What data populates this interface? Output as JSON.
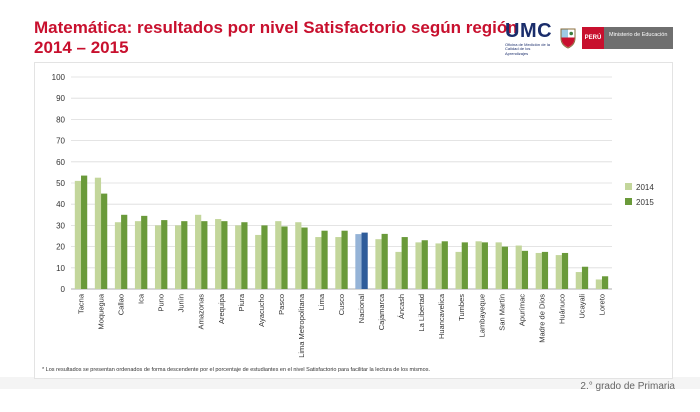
{
  "header": {
    "title_line1": "Matemática: resultados por nivel Satisfactorio según región",
    "title_line2": "2014 – 2015",
    "umc_logo_text": "UMC",
    "umc_logo_subtitle": "Oficina de Medición de la Calidad de los Aprendizajes",
    "peru_label": "PERÚ",
    "ministry_label": "Ministerio de Educación"
  },
  "footnote": "* Los resultados se presentan ordenados de forma descendente por el porcentaje de estudiantes en el nivel Satisfactorio para facilitar la lectura de los mismos.",
  "grade_label": "2.° grado de Primaria",
  "colors": {
    "series_2014": "#c3d69b",
    "series_2015": "#6a9a3a",
    "nacional_2014": "#95b3d7",
    "nacional_2015": "#2f5c9a",
    "title": "#c8102e"
  },
  "chart_data": {
    "type": "bar",
    "title": "",
    "xlabel": "",
    "ylabel": "",
    "ylim": [
      0,
      100
    ],
    "yticks": [
      0,
      10,
      20,
      30,
      40,
      50,
      60,
      70,
      80,
      90,
      100
    ],
    "grid": true,
    "legend_position": "right",
    "highlighted_category": "Nacional",
    "categories": [
      "Tacna",
      "Moquegua",
      "Callao",
      "Ica",
      "Puno",
      "Junín",
      "Amazonas",
      "Arequipa",
      "Piura",
      "Ayacucho",
      "Pasco",
      "Lima Metropolitana",
      "Lima",
      "Cusco",
      "Nacional",
      "Cajamarca",
      "Áncash",
      "La Libertad",
      "Huancavelica",
      "Tumbes",
      "Lambayeque",
      "San Martín",
      "Apurímac",
      "Madre de Dios",
      "Huánuco",
      "Ucayali",
      "Loreto"
    ],
    "series": [
      {
        "name": "2014",
        "values": [
          51,
          52.5,
          31.5,
          32,
          30,
          30,
          35,
          33,
          30,
          25.5,
          32,
          31.5,
          24.5,
          24.5,
          25.9,
          23.5,
          17.5,
          22,
          21.5,
          17.5,
          22.5,
          22,
          20.5,
          17,
          16,
          8,
          4.5
        ]
      },
      {
        "name": "2015",
        "values": [
          53.5,
          45,
          35,
          34.5,
          32.5,
          32,
          32,
          32,
          31.5,
          30,
          29.5,
          29,
          27.5,
          27.5,
          26.6,
          26,
          24.5,
          23,
          22.5,
          22,
          22,
          20,
          18,
          17.5,
          17,
          10.5,
          6
        ]
      }
    ]
  }
}
